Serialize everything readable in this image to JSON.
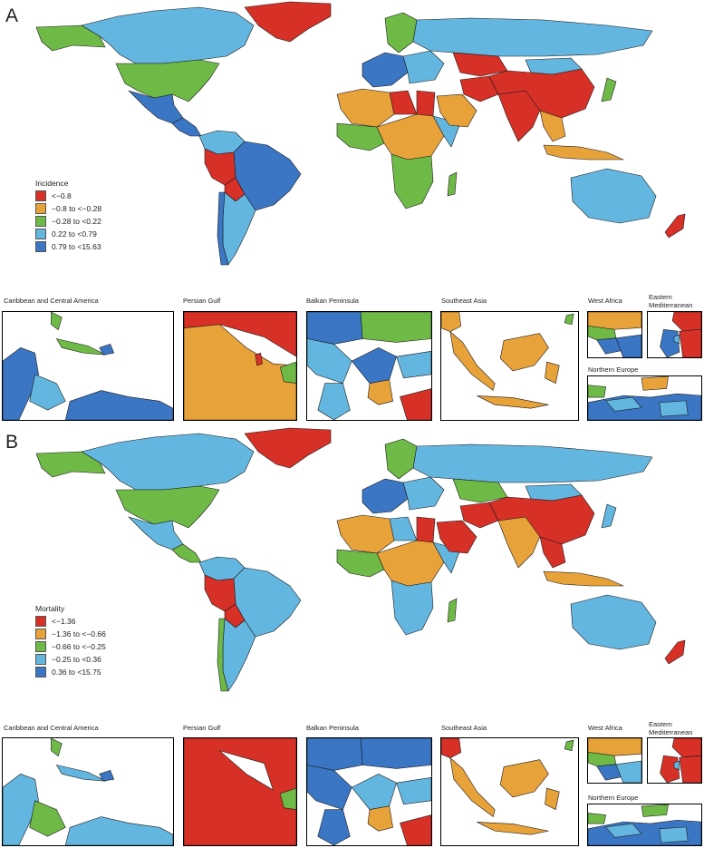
{
  "colors": {
    "red": "#d73027",
    "orange": "#e8a23a",
    "green": "#6fba46",
    "lightblue": "#63b6df",
    "blue": "#3b76c4",
    "border": "#1a1a1a"
  },
  "panels": [
    {
      "letter": "A",
      "legend": {
        "title": "Incidence",
        "items": [
          {
            "label": "<−0.8",
            "color": "#d73027"
          },
          {
            "label": "−0.8 to <−0.28",
            "color": "#e8a23a"
          },
          {
            "label": "−0.28 to <0.22",
            "color": "#6fba46"
          },
          {
            "label": "0.22 to <0.79",
            "color": "#63b6df"
          },
          {
            "label": "0.79 to <15.63",
            "color": "#3b76c4"
          }
        ]
      },
      "insets": [
        "Caribbean and Central America",
        "Persian Gulf",
        "Balkan Peninsula",
        "Southeast Asia",
        "West Africa",
        "Eastern Mediterranean",
        "Northern Europe"
      ]
    },
    {
      "letter": "B",
      "legend": {
        "title": "Mortality",
        "items": [
          {
            "label": "<−1.36",
            "color": "#d73027"
          },
          {
            "label": "−1.36 to <−0.66",
            "color": "#e8a23a"
          },
          {
            "label": "−0.66 to <−0.25",
            "color": "#6fba46"
          },
          {
            "label": "−0.25 to <0.36",
            "color": "#63b6df"
          },
          {
            "label": "0.36 to <15.75",
            "color": "#3b76c4"
          }
        ]
      },
      "insets": [
        "Caribbean and Central America",
        "Persian Gulf",
        "Balkan Peninsula",
        "Southeast Asia",
        "West Africa",
        "Eastern Mediterranean",
        "Northern Europe"
      ]
    }
  ]
}
